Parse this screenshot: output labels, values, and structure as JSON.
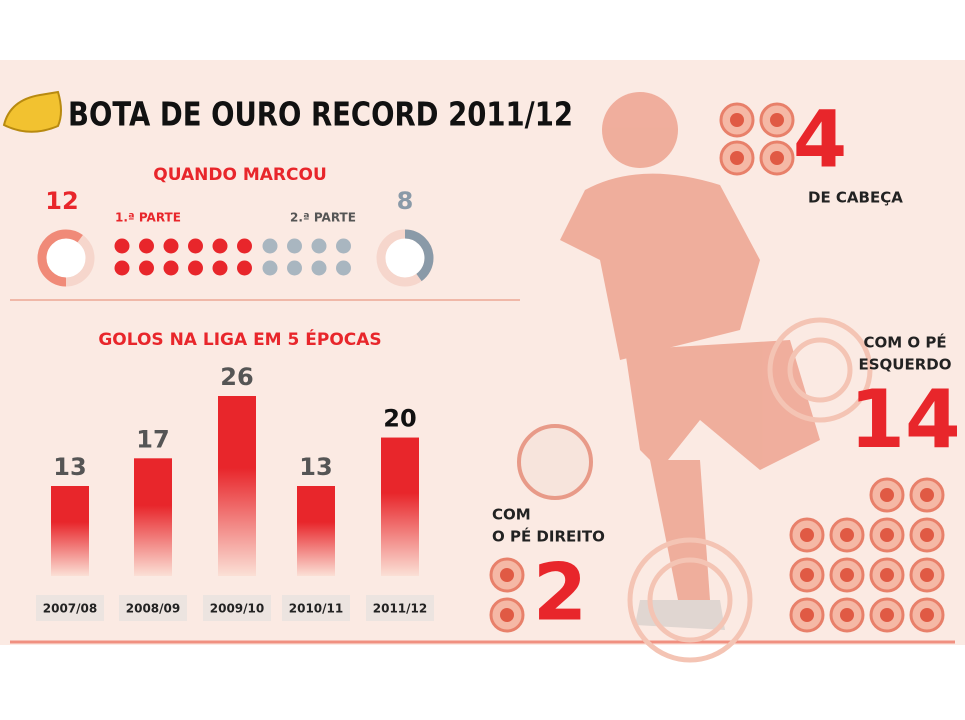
{
  "title": "BOTA DE OURO RECORD 2011/12",
  "halves": {
    "title": "QUANDO MARCOU",
    "first": {
      "label": "1.ª PARTE",
      "value": 12
    },
    "second": {
      "label": "2.ª PARTE",
      "value": 8
    }
  },
  "chart_data": {
    "type": "bar",
    "title": "GOLOS NA LIGA EM 5 ÉPOCAS",
    "categories": [
      "2007/08",
      "2008/09",
      "2009/10",
      "2010/11",
      "2011/12"
    ],
    "values": [
      13,
      17,
      26,
      13,
      20
    ],
    "color": "#e8262b"
  },
  "head": {
    "label": [
      "DE CABEÇA"
    ],
    "value": 4
  },
  "left_foot": {
    "label": [
      "COM O PÉ",
      "ESQUERDO"
    ],
    "value": 14
  },
  "right_foot": {
    "label": [
      "COM",
      "O PÉ DIREITO"
    ],
    "value": 2
  }
}
